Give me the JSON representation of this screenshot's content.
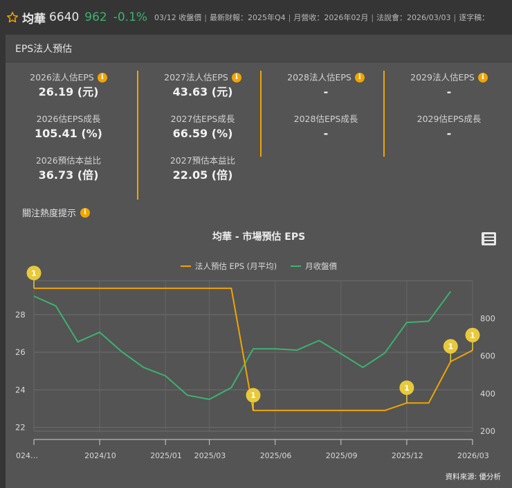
{
  "header": {
    "stock_name": "均華",
    "stock_code": "6640",
    "price": "962",
    "change": "-0.1%",
    "close_label": "03/12 收盤價",
    "meta_items": [
      "最新財報：2025年Q4",
      "月營收：2026年02月",
      "法說會：2026/03/03",
      "逐字稿："
    ]
  },
  "panel": {
    "title": "EPS法人預估"
  },
  "stats": {
    "columns": [
      {
        "eps_label": "2026法人估EPS",
        "eps_value": "26.19 (元)",
        "growth_label": "2026估EPS成長",
        "growth_value": "105.41 (%)",
        "pe_label": "2026預估本益比",
        "pe_value": "36.73 (倍)"
      },
      {
        "eps_label": "2027法人估EPS",
        "eps_value": "43.63 (元)",
        "growth_label": "2027估EPS成長",
        "growth_value": "66.59 (%)",
        "pe_label": "2027預估本益比",
        "pe_value": "22.05 (倍)"
      },
      {
        "eps_label": "2028法人估EPS",
        "eps_value": "-",
        "growth_label": "2028估EPS成長",
        "growth_value": "-"
      },
      {
        "eps_label": "2029法人估EPS",
        "eps_value": "-",
        "growth_label": "2029估EPS成長",
        "growth_value": "-"
      }
    ],
    "hot_label": "關注熱度提示",
    "info_glyph": "i"
  },
  "colors": {
    "eps_line": "#f0a500",
    "price_line": "#3cb371",
    "flag": "#e8c93c",
    "accent": "#f0a500",
    "up_down": "#3cb371"
  },
  "chart_data": {
    "type": "line",
    "title": "均華 - 市場預估 EPS",
    "legend": [
      "法人預估 EPS (月平均)",
      "月收盤價"
    ],
    "legend_position": "top",
    "x": [
      "2024/07",
      "2024/08",
      "2024/09",
      "2024/10",
      "2024/11",
      "2024/12",
      "2025/01",
      "2025/02",
      "2025/03",
      "2025/04",
      "2025/05",
      "2025/06",
      "2025/07",
      "2025/08",
      "2025/09",
      "2025/10",
      "2025/11",
      "2025/12",
      "2026/01",
      "2026/02",
      "2026/03"
    ],
    "x_tick_labels": [
      "024…",
      "2024/10",
      "2025/01",
      "2025/03",
      "2025/06",
      "2025/09",
      "2025/12",
      "2026/03"
    ],
    "series": [
      {
        "name": "法人預估 EPS (月平均)",
        "axis": "left",
        "values": [
          29.4,
          29.4,
          29.4,
          29.4,
          29.4,
          29.4,
          29.4,
          29.4,
          29.4,
          29.4,
          22.9,
          22.9,
          22.9,
          22.9,
          22.9,
          22.9,
          22.9,
          23.3,
          23.3,
          25.5,
          26.1
        ]
      },
      {
        "name": "月收盤價",
        "axis": "right",
        "values": [
          918,
          866,
          675,
          726,
          623,
          539,
          494,
          391,
          369,
          432,
          638,
          638,
          631,
          682,
          612,
          539,
          616,
          778,
          785,
          943,
          943
        ]
      }
    ],
    "flags": [
      {
        "index": 0,
        "label": "1"
      },
      {
        "index": 10,
        "label": "1"
      },
      {
        "index": 17,
        "label": "1"
      },
      {
        "index": 19,
        "label": "1"
      },
      {
        "index": 20,
        "label": "1"
      }
    ],
    "y_left_ticks": [
      "22",
      "24",
      "26",
      "28"
    ],
    "y_right_ticks": [
      "200",
      "400",
      "600",
      "800"
    ],
    "ylim_left": [
      21.8,
      29.8
    ],
    "ylim_right": [
      200,
      1000
    ],
    "grid": true
  },
  "chart_menu_icon": "hamburger-menu-icon",
  "source_label": "資料來源: 優分析"
}
